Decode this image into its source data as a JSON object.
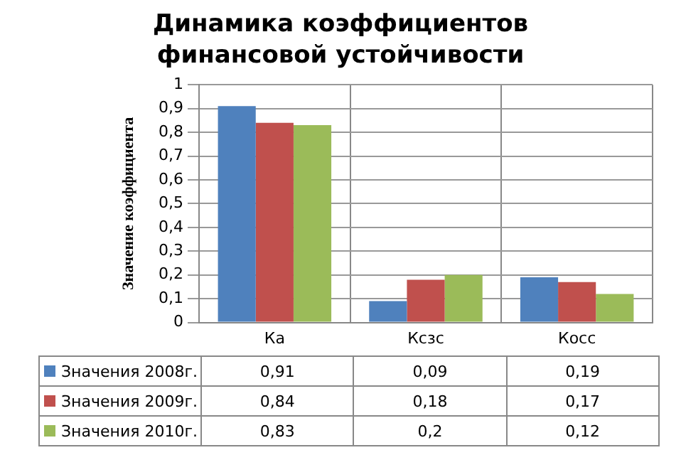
{
  "chart_data": {
    "type": "bar",
    "title": "Динамика коэффициентов финансовой устойчивости",
    "ylabel": "Значение коэффициента",
    "categories": [
      "Ка",
      "Ксзс",
      "Косс"
    ],
    "series": [
      {
        "name": "Значения 2008г.",
        "color": "#4f81bd",
        "values": [
          0.91,
          0.09,
          0.19
        ],
        "value_labels": [
          "0,91",
          "0,09",
          "0,19"
        ]
      },
      {
        "name": "Значения 2009г.",
        "color": "#c0504d",
        "values": [
          0.84,
          0.18,
          0.17
        ],
        "value_labels": [
          "0,84",
          "0,18",
          "0,17"
        ]
      },
      {
        "name": "Значения 2010г.",
        "color": "#9bbb59",
        "values": [
          0.83,
          0.2,
          0.12
        ],
        "value_labels": [
          "0,83",
          "0,2",
          "0,12"
        ]
      }
    ],
    "ylim": [
      0,
      1
    ],
    "yticks": [
      0,
      {
        "value": 0.1,
        "label": "0,1"
      },
      {
        "value": 0.2,
        "label": "0,2"
      },
      {
        "value": 0.3,
        "label": "0,3"
      },
      {
        "value": 0.4,
        "label": "0,4"
      },
      {
        "value": 0.5,
        "label": "0,5"
      },
      {
        "value": 0.6,
        "label": "0,6"
      },
      {
        "value": 0.7,
        "label": "0,7"
      },
      {
        "value": 0.8,
        "label": "0,8"
      },
      {
        "value": 0.9,
        "label": "0,9"
      },
      1
    ],
    "grid": "y",
    "legend": "bottom"
  }
}
